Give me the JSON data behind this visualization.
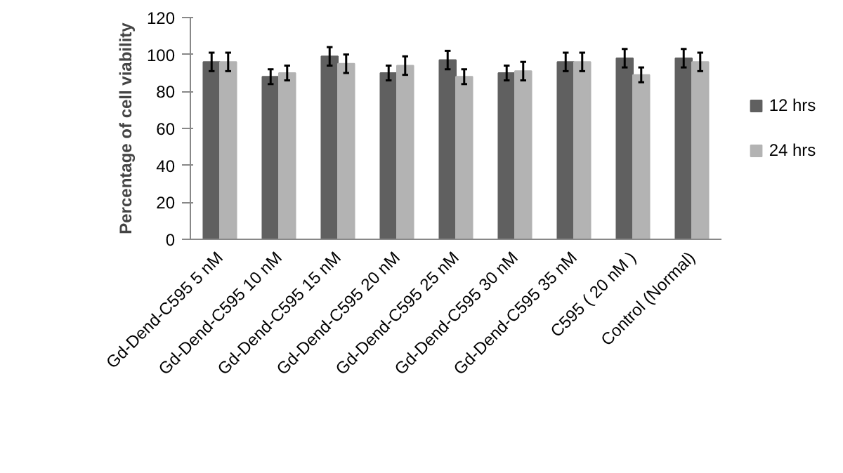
{
  "chart_data": {
    "type": "bar",
    "ylabel": "Percentage of cell viability",
    "categories": [
      "Gd-Dend-C595 5 nM",
      "Gd-Dend-C595 10 nM",
      "Gd-Dend-C595 15 nM",
      "Gd-Dend-C595 20 nM",
      "Gd-Dend-C595 25 nM",
      "Gd-Dend-C595 30 nM",
      "Gd-Dend-C595 35 nM",
      "C595 ( 20 nM )",
      "Control (Normal)"
    ],
    "series": [
      {
        "name": "12 hrs",
        "color": "#606060",
        "values": [
          96,
          88,
          99,
          90,
          97,
          90,
          96,
          98,
          98
        ],
        "errors": [
          5,
          4,
          5,
          4,
          5,
          4,
          5,
          5,
          5
        ]
      },
      {
        "name": "24 hrs",
        "color": "#b3b3b3",
        "values": [
          96,
          90,
          95,
          94,
          88,
          91,
          96,
          89,
          96
        ],
        "errors": [
          5,
          4,
          5,
          5,
          4,
          5,
          5,
          4,
          5
        ]
      }
    ],
    "ylim": [
      0,
      120
    ],
    "yticks": [
      0,
      20,
      40,
      60,
      80,
      100,
      120
    ],
    "grid": false,
    "legend": "right"
  }
}
